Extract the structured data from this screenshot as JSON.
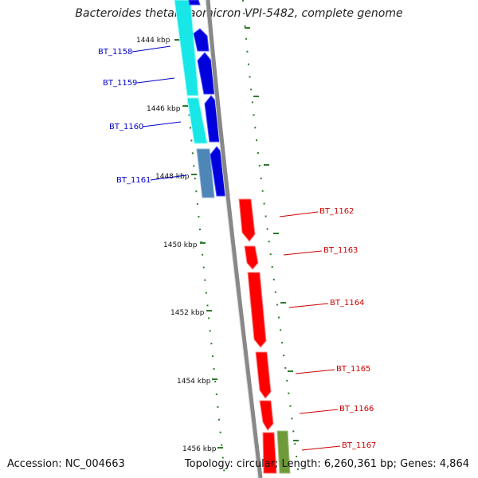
{
  "title": "Bacteroides thetaiotaomicron VPI-5482, complete genome",
  "accession": "Accession: NC_004663",
  "summary": "Topology: circular; Length: 6,260,361 bp; Genes: 4,864",
  "colors": {
    "forward_gene": "#0000dd",
    "reverse_gene": "#ff0000",
    "cyan_feature": "#19e6e6",
    "steel_feature": "#4f86b8",
    "olive_feature": "#6f9a3a",
    "tick_color": "#2d7a2d",
    "backbone": "#888888"
  },
  "ticks": [
    "1444 kbp",
    "1446 kbp",
    "1448 kbp",
    "1450 kbp",
    "1452 kbp",
    "1454 kbp",
    "1456 kbp"
  ],
  "genes_left": [
    "BT_1158",
    "BT_1159",
    "BT_1160",
    "BT_1161"
  ],
  "genes_right": [
    "BT_1162",
    "BT_1163",
    "BT_1164",
    "BT_1165",
    "BT_1166",
    "BT_1167"
  ]
}
